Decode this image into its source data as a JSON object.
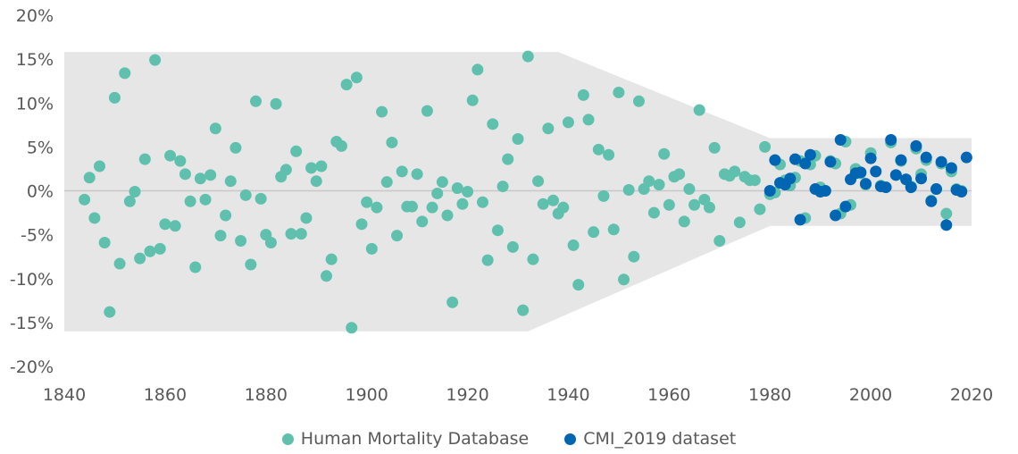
{
  "chart_data": {
    "type": "scatter",
    "xlim": [
      1840,
      2020
    ],
    "ylim": [
      -20,
      20
    ],
    "x_ticks": [
      "1840",
      "1860",
      "1880",
      "1900",
      "1920",
      "1940",
      "1960",
      "1980",
      "2000",
      "2020"
    ],
    "y_ticks": [
      "20%",
      "15%",
      "10%",
      "5%",
      "0%",
      "-5%",
      "-10%",
      "-15%",
      "-20%"
    ],
    "grid": "zero line only",
    "legend_position": "bottom",
    "band": {
      "color": "#e6e6e6",
      "upper": [
        [
          1840,
          15.8
        ],
        [
          1938,
          15.8
        ],
        [
          1980,
          6
        ],
        [
          2020,
          6
        ]
      ],
      "lower": [
        [
          1840,
          -16
        ],
        [
          1932,
          -16
        ],
        [
          1980,
          -4
        ],
        [
          2020,
          -4
        ]
      ]
    },
    "series": [
      {
        "name": "Human Mortality Database",
        "color": "#5fc0ae",
        "start_year": 1844,
        "values": [
          -1.0,
          1.5,
          -3.1,
          2.8,
          -5.9,
          -13.8,
          10.6,
          -8.3,
          13.4,
          -1.2,
          -0.1,
          -7.7,
          3.6,
          -6.9,
          14.9,
          -6.6,
          -3.8,
          4.0,
          -4.0,
          3.4,
          1.9,
          -1.2,
          -8.7,
          1.4,
          -1.0,
          1.8,
          7.1,
          -5.1,
          -2.8,
          1.1,
          4.9,
          -5.7,
          -0.5,
          -8.4,
          10.2,
          -0.9,
          -5.0,
          -5.9,
          9.9,
          1.6,
          2.4,
          -4.9,
          4.5,
          -4.9,
          -3.1,
          2.6,
          1.1,
          2.8,
          -9.7,
          -7.8,
          5.6,
          5.1,
          12.1,
          -15.6,
          12.9,
          -3.8,
          -1.3,
          -6.6,
          -1.9,
          9.0,
          1.0,
          5.5,
          -5.1,
          2.2,
          -1.8,
          -1.8,
          1.9,
          -3.5,
          9.1,
          -1.9,
          -0.3,
          1.0,
          -2.8,
          -12.7,
          0.3,
          -1.5,
          -0.1,
          10.3,
          13.8,
          -1.3,
          -7.9,
          7.6,
          -4.5,
          0.5,
          3.6,
          -6.4,
          5.9,
          -13.6,
          15.3,
          -7.8,
          1.1,
          -1.5,
          7.1,
          -1.1,
          -2.6,
          -1.9,
          7.8,
          -6.2,
          -10.7,
          10.9,
          8.1,
          -4.7,
          4.7,
          -0.6,
          4.1,
          -4.4,
          11.2,
          -10.1,
          0.1,
          -7.5,
          10.2,
          0.2,
          1.1,
          -2.5,
          0.7,
          4.2,
          -1.6,
          1.6,
          1.9,
          -3.5,
          0.2,
          -1.6,
          9.2,
          -1.0,
          -1.9,
          4.9,
          -5.7,
          1.9,
          1.7,
          2.2,
          -3.6,
          1.6,
          1.2,
          1.2,
          -2.1,
          5.0,
          -0.4,
          -0.2,
          3.0,
          1.2,
          0.6,
          1.5,
          3.4,
          -3.1,
          3.0,
          4.0,
          0.4,
          0.0,
          3.4,
          3.1,
          -2.6,
          5.6,
          -1.6,
          2.5,
          2.0,
          0.7,
          4.3,
          2.2,
          0.6,
          0.4,
          5.5,
          1.8,
          3.4,
          1.3,
          0.5,
          4.8,
          1.9,
          3.5,
          -1.1,
          0.2,
          3.1,
          -2.6,
          2.2,
          0.2,
          0.0
        ]
      },
      {
        "name": "CMI_2019 dataset",
        "color": "#0066b3",
        "start_year": 1980,
        "values": [
          0.0,
          3.5,
          0.9,
          0.7,
          1.4,
          3.6,
          -3.3,
          3.1,
          4.1,
          0.2,
          -0.1,
          0.0,
          3.3,
          -2.8,
          5.8,
          -1.8,
          1.3,
          2.0,
          2.1,
          0.8,
          3.7,
          2.2,
          0.5,
          0.4,
          5.8,
          1.8,
          3.5,
          1.3,
          0.4,
          5.1,
          1.4,
          3.8,
          -1.2,
          0.2,
          3.3,
          -3.9,
          2.6,
          0.1,
          -0.1,
          3.8
        ]
      }
    ]
  }
}
